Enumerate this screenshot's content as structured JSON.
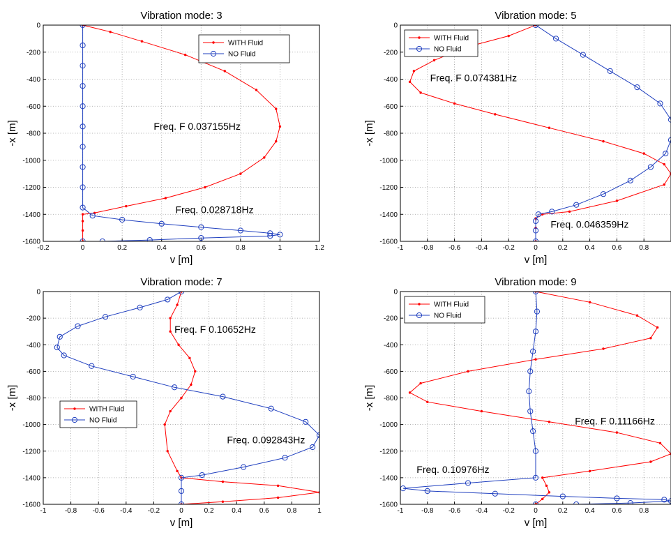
{
  "chart_data": [
    {
      "type": "line",
      "title": "Vibration mode: 3",
      "xlabel": "v [m]",
      "ylabel": "-x [m]",
      "xlim": [
        -0.2,
        1.2
      ],
      "ylim": [
        -1600,
        0
      ],
      "xticks": [
        "-0.2",
        "0",
        "0.2",
        "0.4",
        "0.6",
        "0.8",
        "1",
        "1.2"
      ],
      "yticks": [
        "0",
        "-200",
        "-400",
        "-600",
        "-800",
        "-1000",
        "-1200",
        "-1400",
        "-1600"
      ],
      "grid": true,
      "legend": "top-right",
      "series": [
        {
          "name": "WITH Fluid",
          "color": "#ff0000",
          "marker": "dot",
          "x": [
            0,
            0.14,
            0.3,
            0.52,
            0.72,
            0.88,
            0.98,
            1.0,
            0.98,
            0.92,
            0.8,
            0.62,
            0.42,
            0.22,
            0.06,
            0,
            0,
            0,
            0
          ],
          "y": [
            0,
            -50,
            -120,
            -220,
            -340,
            -480,
            -620,
            -750,
            -860,
            -980,
            -1100,
            -1200,
            -1280,
            -1340,
            -1390,
            -1400,
            -1450,
            -1520,
            -1600
          ]
        },
        {
          "name": "NO Fluid",
          "color": "#1f3fbf",
          "marker": "circle",
          "x": [
            0,
            0,
            0,
            0,
            0,
            0,
            0,
            0,
            0,
            0,
            0.05,
            0.2,
            0.4,
            0.6,
            0.8,
            0.95,
            1.0,
            0.95,
            0.6,
            0.34,
            0.1,
            0
          ],
          "y": [
            0,
            -150,
            -300,
            -450,
            -600,
            -750,
            -900,
            -1050,
            -1200,
            -1350,
            -1410,
            -1440,
            -1470,
            -1495,
            -1520,
            -1540,
            -1550,
            -1560,
            -1575,
            -1590,
            -1600,
            -1600
          ]
        }
      ],
      "annotations": [
        {
          "text": "Freq. F 0.037155Hz",
          "x": 0.36,
          "y": -775
        },
        {
          "text": "Freq. 0.028718Hz",
          "x": 0.47,
          "y": -1390
        }
      ]
    },
    {
      "type": "line",
      "title": "Vibration mode: 5",
      "xlabel": "v [m]",
      "ylabel": "-x [m]",
      "xlim": [
        -1,
        1
      ],
      "ylim": [
        -1600,
        0
      ],
      "xticks": [
        "-1",
        "-0.8",
        "-0.6",
        "-0.4",
        "-0.2",
        "0",
        "0.2",
        "0.4",
        "0.6",
        "0.8"
      ],
      "yticks": [
        "0",
        "-200",
        "-400",
        "-600",
        "-800",
        "-1000",
        "-1200",
        "-1400",
        "-1600"
      ],
      "grid": true,
      "legend": "top-left",
      "series": [
        {
          "name": "WITH Fluid",
          "color": "#ff0000",
          "marker": "dot",
          "x": [
            0,
            -0.2,
            -0.5,
            -0.75,
            -0.9,
            -0.93,
            -0.85,
            -0.6,
            -0.3,
            0.1,
            0.5,
            0.8,
            0.95,
            1.0,
            0.95,
            0.6,
            0.25,
            0.05,
            0,
            0,
            0
          ],
          "y": [
            0,
            -80,
            -160,
            -260,
            -340,
            -420,
            -500,
            -580,
            -660,
            -760,
            -860,
            -950,
            -1030,
            -1100,
            -1180,
            -1300,
            -1380,
            -1400,
            -1430,
            -1500,
            -1600
          ]
        },
        {
          "name": "NO Fluid",
          "color": "#1f3fbf",
          "marker": "circle",
          "x": [
            0,
            0.15,
            0.35,
            0.55,
            0.75,
            0.92,
            1.0,
            1.0,
            0.96,
            0.85,
            0.7,
            0.5,
            0.3,
            0.12,
            0.02,
            0,
            0,
            0
          ],
          "y": [
            0,
            -100,
            -220,
            -340,
            -460,
            -580,
            -700,
            -850,
            -950,
            -1050,
            -1150,
            -1250,
            -1330,
            -1380,
            -1400,
            -1450,
            -1520,
            -1600
          ]
        }
      ],
      "annotations": [
        {
          "text": "Freq. F 0.074381Hz",
          "x": -0.78,
          "y": -415
        },
        {
          "text": "Freq. 0.046359Hz",
          "x": 0.11,
          "y": -1500
        }
      ]
    },
    {
      "type": "line",
      "title": "Vibration mode: 7",
      "xlabel": "v [m]",
      "ylabel": "-x [m]",
      "xlim": [
        -1,
        1
      ],
      "ylim": [
        -1600,
        0
      ],
      "xticks": [
        "-1",
        "-0.8",
        "-0.6",
        "-0.4",
        "-0.2",
        "0",
        "0.2",
        "0.4",
        "0.6",
        "0.8",
        "1"
      ],
      "yticks": [
        "0",
        "-200",
        "-400",
        "-600",
        "-800",
        "-1000",
        "-1200",
        "-1400",
        "-1600"
      ],
      "grid": true,
      "legend": "middle-left",
      "series": [
        {
          "name": "WITH Fluid",
          "color": "#ff0000",
          "marker": "dot",
          "x": [
            0,
            -0.03,
            -0.08,
            -0.08,
            -0.02,
            0.06,
            0.1,
            0.07,
            0.0,
            -0.08,
            -0.12,
            -0.1,
            -0.03,
            0,
            0.3,
            0.7,
            1.0,
            0.7,
            0.3,
            0
          ],
          "y": [
            0,
            -100,
            -200,
            -300,
            -400,
            -500,
            -600,
            -700,
            -800,
            -900,
            -1000,
            -1200,
            -1350,
            -1400,
            -1430,
            -1460,
            -1510,
            -1550,
            -1580,
            -1600
          ]
        },
        {
          "name": "NO Fluid",
          "color": "#1f3fbf",
          "marker": "circle",
          "x": [
            0,
            -0.1,
            -0.3,
            -0.55,
            -0.75,
            -0.88,
            -0.9,
            -0.85,
            -0.65,
            -0.35,
            -0.05,
            0.3,
            0.65,
            0.9,
            1.0,
            0.95,
            0.75,
            0.45,
            0.15,
            0,
            0,
            0
          ],
          "y": [
            0,
            -60,
            -120,
            -190,
            -260,
            -340,
            -420,
            -480,
            -560,
            -640,
            -720,
            -790,
            -880,
            -980,
            -1080,
            -1170,
            -1250,
            -1320,
            -1380,
            -1400,
            -1500,
            -1600
          ]
        }
      ],
      "annotations": [
        {
          "text": "Freq. F 0.10652Hz",
          "x": -0.05,
          "y": -310
        },
        {
          "text": "Freq. 0.092843Hz",
          "x": 0.33,
          "y": -1140
        }
      ]
    },
    {
      "type": "line",
      "title": "Vibration mode: 9",
      "xlabel": "v [m]",
      "ylabel": "-x [m]",
      "xlim": [
        -1,
        1
      ],
      "ylim": [
        -1600,
        0
      ],
      "xticks": [
        "-1",
        "-0.8",
        "-0.6",
        "-0.4",
        "-0.2",
        "0",
        "0.2",
        "0.4",
        "0.6",
        "0.8"
      ],
      "yticks": [
        "0",
        "-200",
        "-400",
        "-600",
        "-800",
        "-1000",
        "-1200",
        "-1400",
        "-1600"
      ],
      "grid": true,
      "legend": "top-left",
      "series": [
        {
          "name": "WITH Fluid",
          "color": "#ff0000",
          "marker": "dot",
          "x": [
            0,
            0.4,
            0.75,
            0.9,
            0.85,
            0.5,
            0.0,
            -0.5,
            -0.85,
            -0.93,
            -0.8,
            -0.4,
            0.1,
            0.6,
            0.92,
            1.0,
            0.85,
            0.4,
            0.05,
            0.08,
            0.1,
            0.05,
            0
          ],
          "y": [
            0,
            -80,
            -180,
            -270,
            -350,
            -430,
            -510,
            -600,
            -690,
            -760,
            -830,
            -900,
            -980,
            -1060,
            -1140,
            -1220,
            -1280,
            -1350,
            -1400,
            -1460,
            -1510,
            -1560,
            -1600
          ]
        },
        {
          "name": "NO Fluid",
          "color": "#1f3fbf",
          "marker": "circle",
          "x": [
            0,
            0.01,
            0.0,
            -0.02,
            -0.04,
            -0.05,
            -0.04,
            -0.02,
            0.0,
            0,
            -0.5,
            -0.98,
            -0.8,
            -0.3,
            0.2,
            0.6,
            0.95,
            1.0,
            0.7,
            0.3,
            0
          ],
          "y": [
            0,
            -150,
            -300,
            -450,
            -600,
            -750,
            -900,
            -1050,
            -1200,
            -1400,
            -1440,
            -1480,
            -1500,
            -1520,
            -1540,
            -1555,
            -1565,
            -1575,
            -1590,
            -1600,
            -1600
          ]
        }
      ],
      "annotations": [
        {
          "text": "Freq. F 0.11166Hz",
          "x": 0.29,
          "y": -1000
        },
        {
          "text": "Freq. 0.10976Hz",
          "x": -0.88,
          "y": -1365
        }
      ]
    }
  ]
}
